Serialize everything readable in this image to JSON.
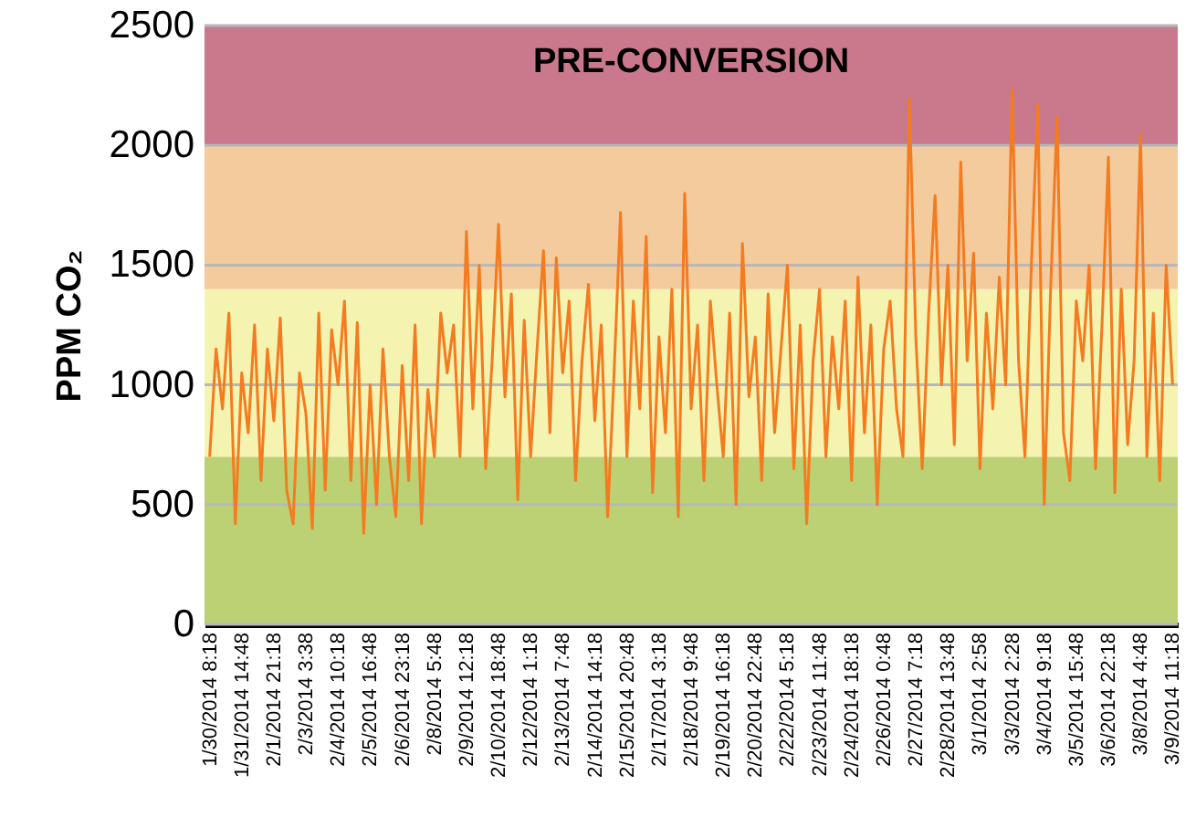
{
  "chart_data": {
    "type": "line",
    "ylabel": "PPM CO₂",
    "categories": [
      "1/30/2014 8:18",
      null,
      null,
      null,
      null,
      "1/31/2014 14:48",
      null,
      null,
      null,
      null,
      "2/1/2014 21:18",
      null,
      null,
      null,
      null,
      "2/3/2014 3:38",
      null,
      null,
      null,
      null,
      "2/4/2014 10:18",
      null,
      null,
      null,
      null,
      "2/5/2014 16:48",
      null,
      null,
      null,
      null,
      "2/6/2014 23:18",
      null,
      null,
      null,
      null,
      "2/8/2014 5:48",
      null,
      null,
      null,
      null,
      "2/9/2014 12:18",
      null,
      null,
      null,
      null,
      "2/10/2014 18:48",
      null,
      null,
      null,
      null,
      "2/12/2014 1:18",
      null,
      null,
      null,
      null,
      "2/13/2014 7:48",
      null,
      null,
      null,
      null,
      "2/14/2014 14:18",
      null,
      null,
      null,
      null,
      "2/15/2014 20:48",
      null,
      null,
      null,
      null,
      "2/17/2014 3:18",
      null,
      null,
      null,
      null,
      "2/18/2014 9:48",
      null,
      null,
      null,
      null,
      "2/19/2014 16:18",
      null,
      null,
      null,
      null,
      "2/20/2014 22:48",
      null,
      null,
      null,
      null,
      "2/22/2014 5:18",
      null,
      null,
      null,
      null,
      "2/23/2014 11:48",
      null,
      null,
      null,
      null,
      "2/24/2014 18:18",
      null,
      null,
      null,
      null,
      "2/26/2014 0:48",
      null,
      null,
      null,
      null,
      "2/27/2014 7:18",
      null,
      null,
      null,
      null,
      "2/28/2014 13:48",
      null,
      null,
      null,
      null,
      "3/1/2014 2:58",
      null,
      null,
      null,
      null,
      "3/3/2014 2:28",
      null,
      null,
      null,
      null,
      "3/4/2014 9:18",
      null,
      null,
      null,
      null,
      "3/5/2014 15:48",
      null,
      null,
      null,
      null,
      "3/6/2014 22:18",
      null,
      null,
      null,
      null,
      "3/8/2014 4:48",
      null,
      null,
      null,
      null,
      "3/9/2014 11:18"
    ],
    "series": [
      {
        "color": "#f47b20",
        "values": [
          700,
          1150,
          900,
          1300,
          420,
          1050,
          800,
          1250,
          600,
          1150,
          850,
          1280,
          560,
          420,
          1050,
          880,
          400,
          1300,
          560,
          1230,
          1000,
          1350,
          600,
          1260,
          380,
          1000,
          500,
          1150,
          700,
          450,
          1080,
          600,
          1250,
          420,
          980,
          700,
          1300,
          1050,
          1250,
          700,
          1640,
          900,
          1500,
          650,
          1100,
          1670,
          950,
          1380,
          520,
          1270,
          700,
          1150,
          1560,
          800,
          1530,
          1050,
          1350,
          600,
          1100,
          1420,
          850,
          1250,
          450,
          1050,
          1720,
          700,
          1350,
          900,
          1620,
          550,
          1200,
          800,
          1400,
          450,
          1800,
          900,
          1250,
          600,
          1350,
          1000,
          700,
          1300,
          500,
          1590,
          950,
          1200,
          600,
          1380,
          800,
          1150,
          1500,
          650,
          1250,
          420,
          1100,
          1400,
          700,
          1200,
          900,
          1350,
          600,
          1450,
          800,
          1250,
          500,
          1150,
          1350,
          900,
          700,
          2195,
          1200,
          650,
          1300,
          1790,
          1000,
          1500,
          750,
          1930,
          1100,
          1550,
          650,
          1300,
          900,
          1450,
          1000,
          2233,
          1100,
          700,
          1500,
          2172,
          500,
          1400,
          2120,
          800,
          600,
          1350,
          1100,
          1500,
          650,
          1250,
          1950,
          550,
          1400,
          750,
          1100,
          2043,
          700,
          1300,
          600,
          1500,
          1000
        ]
      }
    ],
    "ylim": [
      0,
      2500
    ],
    "yticks": [
      0,
      500,
      1000,
      1500,
      2000,
      2500
    ],
    "grid": "y",
    "bands": [
      {
        "axis": "y",
        "from": 0,
        "to": 700,
        "color": "#bbd174"
      },
      {
        "axis": "y",
        "from": 700,
        "to": 1400,
        "color": "#f5f3b0"
      },
      {
        "axis": "y",
        "from": 1400,
        "to": 2000,
        "color": "#f4cb9d"
      },
      {
        "axis": "y",
        "from": 2000,
        "to": 2500,
        "color": "#c9798b",
        "label": "PRE-CONVERSION"
      }
    ]
  }
}
